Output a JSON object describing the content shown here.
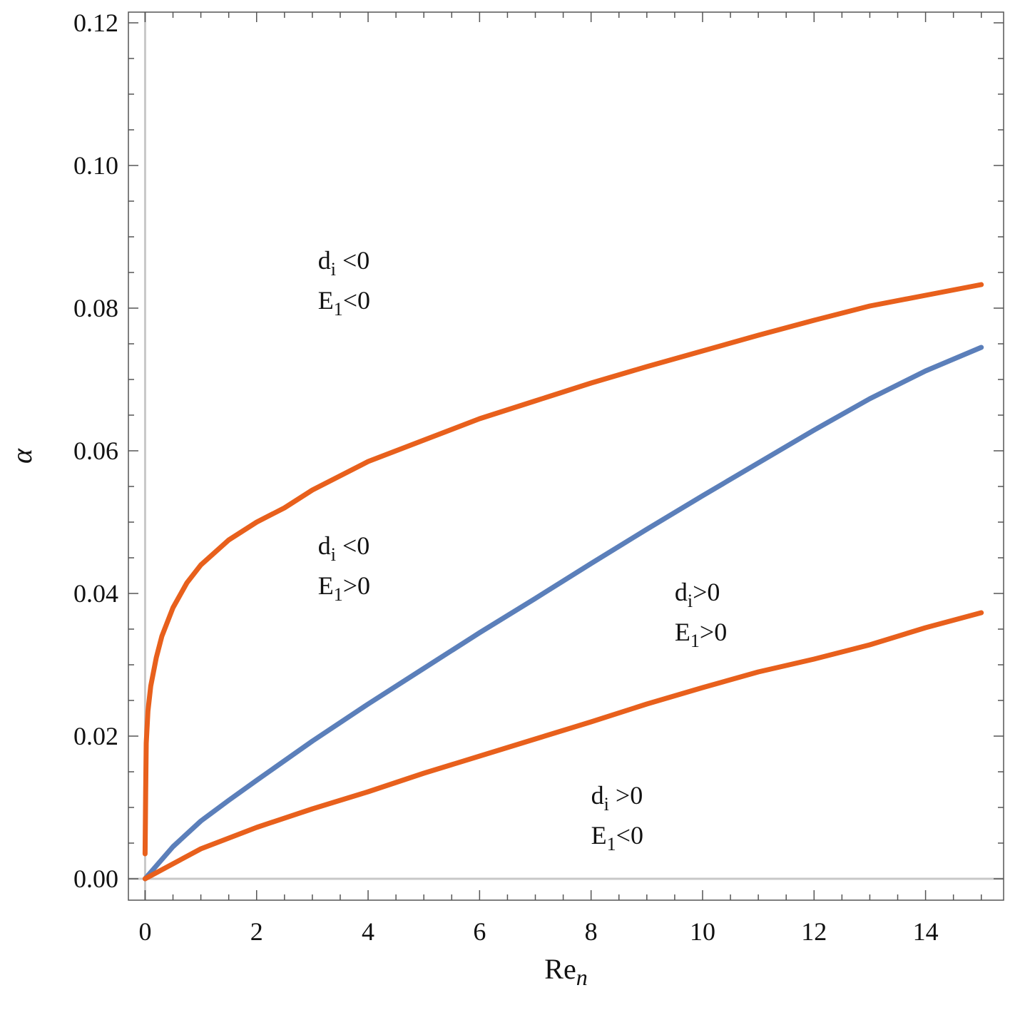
{
  "chart_data": {
    "type": "line",
    "xlabel": {
      "main": "Re",
      "sub": "n"
    },
    "ylabel": "α",
    "xlim": [
      -0.3,
      15.4
    ],
    "ylim": [
      -0.003,
      0.1215
    ],
    "x_ticks": [
      0,
      2,
      4,
      6,
      8,
      10,
      12,
      14
    ],
    "x_tick_labels": [
      "0",
      "2",
      "4",
      "6",
      "8",
      "10",
      "12",
      "14"
    ],
    "y_ticks": [
      0.0,
      0.02,
      0.04,
      0.06,
      0.08,
      0.1,
      0.12
    ],
    "y_tick_labels": [
      "0.00",
      "0.02",
      "0.04",
      "0.06",
      "0.08",
      "0.10",
      "0.12"
    ],
    "grid": false,
    "colors": {
      "orange": "#e8601c",
      "blue": "#5b7fba",
      "axis_line": "#c8c8c8",
      "frame": "#555555"
    },
    "series": [
      {
        "color": "#e8601c",
        "x": [
          0.0,
          0.01,
          0.02,
          0.05,
          0.1,
          0.2,
          0.3,
          0.5,
          0.75,
          1.0,
          1.5,
          2.0,
          2.5,
          3.0,
          4.0,
          5.0,
          6.0,
          7.0,
          8.0,
          9.0,
          10.0,
          11.0,
          12.0,
          13.0,
          14.0,
          15.0
        ],
        "y": [
          0.0035,
          0.012,
          0.019,
          0.0235,
          0.027,
          0.031,
          0.034,
          0.038,
          0.0415,
          0.044,
          0.0475,
          0.05,
          0.052,
          0.0545,
          0.0585,
          0.0615,
          0.0645,
          0.067,
          0.0695,
          0.0718,
          0.074,
          0.0762,
          0.0783,
          0.0803,
          0.0818,
          0.0833
        ]
      },
      {
        "color": "#5b7fba",
        "x": [
          0.0,
          0.5,
          1.0,
          1.5,
          2.0,
          3.0,
          4.0,
          5.0,
          6.0,
          7.0,
          8.0,
          9.0,
          10.0,
          11.0,
          12.0,
          13.0,
          14.0,
          15.0
        ],
        "y": [
          0.0,
          0.0045,
          0.0081,
          0.011,
          0.0138,
          0.0193,
          0.0245,
          0.0295,
          0.0345,
          0.0393,
          0.0442,
          0.049,
          0.0537,
          0.0583,
          0.0629,
          0.0673,
          0.0712,
          0.0745
        ]
      },
      {
        "color": "#e8601c",
        "x": [
          0.0,
          1.0,
          2.0,
          3.0,
          4.0,
          5.0,
          6.0,
          7.0,
          8.0,
          9.0,
          10.0,
          11.0,
          12.0,
          13.0,
          14.0,
          15.0
        ],
        "y": [
          0.0,
          0.0042,
          0.0072,
          0.0098,
          0.0122,
          0.0148,
          0.0172,
          0.0196,
          0.022,
          0.0245,
          0.0268,
          0.029,
          0.0308,
          0.0328,
          0.0352,
          0.0373
        ]
      }
    ],
    "annotations": [
      {
        "x": 3.1,
        "y": 0.0855,
        "lines": [
          {
            "main": "d",
            "sub": "i",
            "rest": " <0"
          },
          {
            "main": "E",
            "sub": "1",
            "rest": "<0"
          }
        ]
      },
      {
        "x": 3.1,
        "y": 0.0455,
        "lines": [
          {
            "main": "d",
            "sub": "i",
            "rest": " <0"
          },
          {
            "main": "E",
            "sub": "1",
            "rest": ">0"
          }
        ]
      },
      {
        "x": 9.5,
        "y": 0.039,
        "lines": [
          {
            "main": "d",
            "sub": "i",
            "rest": ">0"
          },
          {
            "main": "E",
            "sub": "1",
            "rest": ">0"
          }
        ]
      },
      {
        "x": 8.0,
        "y": 0.0105,
        "lines": [
          {
            "main": "d",
            "sub": "i",
            "rest": " >0"
          },
          {
            "main": "E",
            "sub": "1",
            "rest": "<0"
          }
        ]
      }
    ]
  }
}
